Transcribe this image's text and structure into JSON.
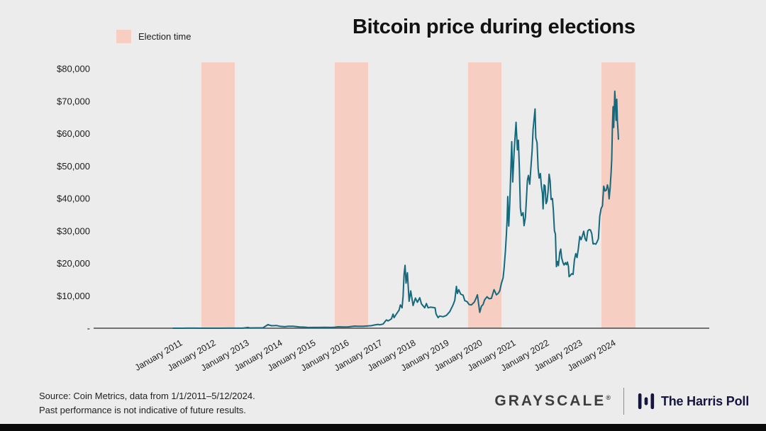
{
  "page": {
    "background_color": "#ececec",
    "bottom_bar_color": "#0a0a0a"
  },
  "legend": {
    "label": "Election time",
    "swatch_color": "#f6cec2"
  },
  "chart_data": {
    "type": "line",
    "title": "Bitcoin price during elections",
    "xlabel": "",
    "ylabel": "",
    "grid": false,
    "legend_position": "top-left",
    "line_color": "#16697d",
    "band_color": "#f6cec2",
    "axis_color": "#4a4a4a",
    "label_color": "#1c1c1c",
    "xlim": [
      2011,
      2024.87
    ],
    "ylim": [
      0,
      80000
    ],
    "x_tick_years": [
      2011,
      2012,
      2013,
      2014,
      2015,
      2016,
      2017,
      2018,
      2019,
      2020,
      2021,
      2022,
      2023,
      2024
    ],
    "x_tick_labels": [
      "January 2011",
      "January 2012",
      "January 2013",
      "January 2014",
      "January 2015",
      "January 2016",
      "January 2017",
      "January 2018",
      "January 2019",
      "January 2020",
      "January 2021",
      "January 2022",
      "January 2023",
      "January 2024"
    ],
    "y_ticks": [
      {
        "value": 0,
        "label": "-"
      },
      {
        "value": 10000,
        "label": "$10,000"
      },
      {
        "value": 20000,
        "label": "$20,000"
      },
      {
        "value": 30000,
        "label": "$30,000"
      },
      {
        "value": 40000,
        "label": "$40,000"
      },
      {
        "value": 50000,
        "label": "$50,000"
      },
      {
        "value": 60000,
        "label": "$60,000"
      },
      {
        "value": 70000,
        "label": "$70,000"
      },
      {
        "value": 80000,
        "label": "$80,000"
      }
    ],
    "election_bands": [
      [
        2011.85,
        2012.85
      ],
      [
        2015.85,
        2016.85
      ],
      [
        2019.85,
        2020.85
      ],
      [
        2023.85,
        2024.87
      ]
    ],
    "series": [
      {
        "name": "Bitcoin price",
        "points": [
          [
            2011.0,
            0.3
          ],
          [
            2011.3,
            1
          ],
          [
            2011.45,
            29
          ],
          [
            2011.6,
            13
          ],
          [
            2011.9,
            3
          ],
          [
            2012.1,
            5
          ],
          [
            2012.4,
            6.5
          ],
          [
            2012.7,
            11
          ],
          [
            2012.95,
            13.5
          ],
          [
            2013.1,
            20
          ],
          [
            2013.25,
            230
          ],
          [
            2013.3,
            80
          ],
          [
            2013.5,
            100
          ],
          [
            2013.7,
            130
          ],
          [
            2013.85,
            1120
          ],
          [
            2013.95,
            760
          ],
          [
            2014.1,
            820
          ],
          [
            2014.2,
            620
          ],
          [
            2014.35,
            450
          ],
          [
            2014.45,
            590
          ],
          [
            2014.6,
            600
          ],
          [
            2014.8,
            380
          ],
          [
            2014.95,
            320
          ],
          [
            2015.05,
            220
          ],
          [
            2015.2,
            245
          ],
          [
            2015.35,
            240
          ],
          [
            2015.55,
            270
          ],
          [
            2015.75,
            235
          ],
          [
            2015.85,
            310
          ],
          [
            2015.95,
            430
          ],
          [
            2016.1,
            380
          ],
          [
            2016.25,
            420
          ],
          [
            2016.45,
            660
          ],
          [
            2016.55,
            580
          ],
          [
            2016.7,
            610
          ],
          [
            2016.85,
            700
          ],
          [
            2016.95,
            790
          ],
          [
            2017.05,
            1000
          ],
          [
            2017.15,
            1190
          ],
          [
            2017.2,
            1050
          ],
          [
            2017.3,
            1290
          ],
          [
            2017.4,
            2550
          ],
          [
            2017.45,
            2250
          ],
          [
            2017.55,
            2870
          ],
          [
            2017.6,
            4350
          ],
          [
            2017.63,
            3250
          ],
          [
            2017.7,
            4400
          ],
          [
            2017.78,
            5600
          ],
          [
            2017.82,
            7200
          ],
          [
            2017.87,
            6300
          ],
          [
            2017.9,
            9800
          ],
          [
            2017.93,
            16600
          ],
          [
            2017.96,
            19400
          ],
          [
            2017.99,
            13900
          ],
          [
            2018.03,
            17100
          ],
          [
            2018.08,
            8300
          ],
          [
            2018.13,
            11500
          ],
          [
            2018.2,
            7000
          ],
          [
            2018.27,
            9300
          ],
          [
            2018.33,
            8000
          ],
          [
            2018.4,
            9400
          ],
          [
            2018.45,
            7500
          ],
          [
            2018.55,
            6300
          ],
          [
            2018.6,
            7600
          ],
          [
            2018.65,
            6300
          ],
          [
            2018.72,
            6500
          ],
          [
            2018.8,
            6400
          ],
          [
            2018.86,
            6300
          ],
          [
            2018.89,
            4400
          ],
          [
            2018.95,
            3250
          ],
          [
            2019.0,
            3750
          ],
          [
            2019.1,
            3550
          ],
          [
            2019.2,
            3950
          ],
          [
            2019.3,
            5100
          ],
          [
            2019.4,
            7200
          ],
          [
            2019.45,
            8600
          ],
          [
            2019.5,
            12900
          ],
          [
            2019.53,
            10700
          ],
          [
            2019.57,
            11900
          ],
          [
            2019.63,
            10500
          ],
          [
            2019.7,
            10200
          ],
          [
            2019.75,
            8500
          ],
          [
            2019.82,
            8200
          ],
          [
            2019.88,
            7300
          ],
          [
            2019.95,
            7200
          ],
          [
            2020.04,
            8100
          ],
          [
            2020.1,
            9500
          ],
          [
            2020.13,
            10300
          ],
          [
            2020.2,
            4900
          ],
          [
            2020.25,
            6800
          ],
          [
            2020.3,
            7300
          ],
          [
            2020.35,
            8800
          ],
          [
            2020.42,
            9700
          ],
          [
            2020.48,
            9100
          ],
          [
            2020.55,
            9200
          ],
          [
            2020.6,
            10900
          ],
          [
            2020.63,
            11900
          ],
          [
            2020.7,
            10300
          ],
          [
            2020.75,
            10700
          ],
          [
            2020.8,
            11500
          ],
          [
            2020.85,
            13800
          ],
          [
            2020.9,
            15500
          ],
          [
            2020.93,
            18400
          ],
          [
            2020.97,
            23800
          ],
          [
            2021.0,
            29000
          ],
          [
            2021.02,
            33100
          ],
          [
            2021.04,
            40600
          ],
          [
            2021.07,
            31500
          ],
          [
            2021.1,
            38300
          ],
          [
            2021.13,
            47900
          ],
          [
            2021.16,
            57500
          ],
          [
            2021.19,
            45100
          ],
          [
            2021.23,
            54100
          ],
          [
            2021.26,
            58900
          ],
          [
            2021.29,
            63500
          ],
          [
            2021.33,
            55000
          ],
          [
            2021.36,
            58000
          ],
          [
            2021.39,
            49000
          ],
          [
            2021.42,
            37000
          ],
          [
            2021.45,
            34700
          ],
          [
            2021.5,
            35600
          ],
          [
            2021.53,
            31600
          ],
          [
            2021.57,
            34200
          ],
          [
            2021.6,
            39800
          ],
          [
            2021.63,
            45600
          ],
          [
            2021.66,
            47100
          ],
          [
            2021.7,
            44400
          ],
          [
            2021.73,
            48800
          ],
          [
            2021.77,
            54600
          ],
          [
            2021.8,
            61300
          ],
          [
            2021.83,
            64400
          ],
          [
            2021.86,
            67600
          ],
          [
            2021.88,
            58700
          ],
          [
            2021.92,
            57200
          ],
          [
            2021.95,
            49300
          ],
          [
            2021.98,
            46300
          ],
          [
            2022.02,
            47700
          ],
          [
            2022.05,
            43900
          ],
          [
            2022.08,
            41500
          ],
          [
            2022.1,
            36800
          ],
          [
            2022.13,
            44200
          ],
          [
            2022.16,
            43900
          ],
          [
            2022.19,
            38400
          ],
          [
            2022.22,
            39200
          ],
          [
            2022.25,
            42400
          ],
          [
            2022.28,
            47500
          ],
          [
            2022.31,
            45500
          ],
          [
            2022.34,
            39700
          ],
          [
            2022.38,
            40000
          ],
          [
            2022.41,
            36000
          ],
          [
            2022.44,
            30100
          ],
          [
            2022.47,
            29000
          ],
          [
            2022.5,
            19000
          ],
          [
            2022.53,
            20600
          ],
          [
            2022.56,
            19300
          ],
          [
            2022.6,
            23300
          ],
          [
            2022.63,
            24400
          ],
          [
            2022.66,
            21600
          ],
          [
            2022.7,
            20100
          ],
          [
            2022.73,
            19500
          ],
          [
            2022.77,
            20200
          ],
          [
            2022.8,
            19600
          ],
          [
            2022.83,
            20400
          ],
          [
            2022.86,
            19100
          ],
          [
            2022.88,
            15900
          ],
          [
            2022.92,
            16300
          ],
          [
            2022.96,
            16800
          ],
          [
            2023.0,
            16600
          ],
          [
            2023.04,
            21100
          ],
          [
            2023.08,
            23000
          ],
          [
            2023.12,
            21800
          ],
          [
            2023.16,
            24700
          ],
          [
            2023.2,
            28300
          ],
          [
            2023.24,
            27300
          ],
          [
            2023.28,
            28500
          ],
          [
            2023.32,
            29900
          ],
          [
            2023.36,
            27600
          ],
          [
            2023.4,
            26900
          ],
          [
            2023.44,
            30000
          ],
          [
            2023.48,
            30400
          ],
          [
            2023.52,
            30300
          ],
          [
            2023.56,
            29200
          ],
          [
            2023.6,
            26000
          ],
          [
            2023.64,
            26100
          ],
          [
            2023.68,
            25900
          ],
          [
            2023.72,
            26600
          ],
          [
            2023.76,
            27600
          ],
          [
            2023.8,
            34500
          ],
          [
            2023.84,
            36900
          ],
          [
            2023.88,
            37700
          ],
          [
            2023.92,
            43800
          ],
          [
            2023.96,
            42300
          ],
          [
            2024.0,
            42600
          ],
          [
            2024.03,
            44200
          ],
          [
            2024.06,
            42900
          ],
          [
            2024.08,
            39900
          ],
          [
            2024.11,
            43100
          ],
          [
            2024.14,
            48000
          ],
          [
            2024.16,
            52100
          ],
          [
            2024.18,
            62500
          ],
          [
            2024.2,
            68300
          ],
          [
            2024.22,
            61900
          ],
          [
            2024.25,
            73100
          ],
          [
            2024.27,
            69400
          ],
          [
            2024.29,
            64100
          ],
          [
            2024.31,
            70600
          ],
          [
            2024.33,
            63800
          ],
          [
            2024.35,
            60800
          ],
          [
            2024.36,
            58300
          ]
        ]
      }
    ]
  },
  "footer": {
    "source_line1": "Source: Coin Metrics, data from 1/1/2011–5/12/2024.",
    "source_line2": "Past performance is not indicative of future results.",
    "grayscale_logo": "GRAYSCALE",
    "grayscale_reg": "®",
    "harris_logo": "The Harris Poll"
  }
}
